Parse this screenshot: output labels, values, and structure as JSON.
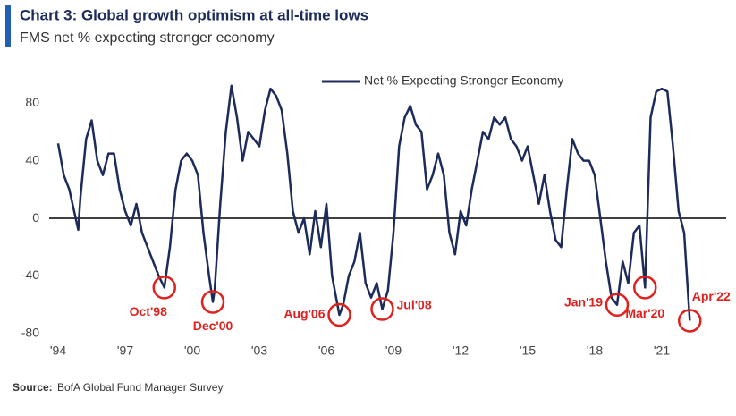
{
  "chart_data": {
    "type": "line",
    "title": "Chart 3: Global growth optimism at all-time lows",
    "subtitle": "FMS net % expecting stronger economy",
    "source_label": "Source:",
    "source": "BofA Global Fund Manager Survey",
    "x": [
      1994.0,
      1994.25,
      1994.5,
      1994.9,
      1995.0,
      1995.25,
      1995.5,
      1995.75,
      1996.0,
      1996.25,
      1996.5,
      1996.75,
      1997.0,
      1997.25,
      1997.5,
      1997.75,
      1998.0,
      1998.5,
      1998.75,
      1999.0,
      1999.25,
      1999.5,
      1999.75,
      2000.0,
      2000.25,
      2000.5,
      2000.75,
      2000.92,
      2001.0,
      2001.25,
      2001.5,
      2001.75,
      2002.0,
      2002.25,
      2002.5,
      2002.75,
      2003.0,
      2003.25,
      2003.5,
      2003.75,
      2004.0,
      2004.25,
      2004.5,
      2004.75,
      2005.0,
      2005.25,
      2005.5,
      2005.75,
      2006.0,
      2006.25,
      2006.58,
      2006.75,
      2007.0,
      2007.25,
      2007.5,
      2007.75,
      2008.0,
      2008.25,
      2008.5,
      2008.75,
      2009.0,
      2009.25,
      2009.5,
      2009.75,
      2010.0,
      2010.25,
      2010.5,
      2010.75,
      2011.0,
      2011.25,
      2011.5,
      2011.75,
      2012.0,
      2012.25,
      2012.5,
      2012.75,
      2013.0,
      2013.25,
      2013.5,
      2013.75,
      2014.0,
      2014.25,
      2014.5,
      2014.75,
      2015.0,
      2015.25,
      2015.5,
      2015.75,
      2016.0,
      2016.25,
      2016.5,
      2016.75,
      2017.0,
      2017.25,
      2017.5,
      2017.75,
      2018.0,
      2018.25,
      2018.5,
      2018.75,
      2019.0,
      2019.25,
      2019.5,
      2019.75,
      2020.0,
      2020.25,
      2020.5,
      2020.75,
      2021.0,
      2021.25,
      2021.5,
      2021.75,
      2022.0,
      2022.25
    ],
    "series": [
      {
        "name": "Net % Expecting Stronger Economy",
        "color": "#1c2b5a",
        "values": [
          52,
          30,
          20,
          -8,
          15,
          55,
          68,
          40,
          30,
          45,
          45,
          20,
          5,
          -5,
          10,
          -10,
          -20,
          -40,
          -48,
          -20,
          20,
          40,
          45,
          40,
          30,
          -10,
          -40,
          -58,
          -50,
          10,
          60,
          92,
          70,
          40,
          60,
          55,
          50,
          75,
          90,
          85,
          75,
          45,
          5,
          -10,
          0,
          -25,
          5,
          -20,
          10,
          -40,
          -67,
          -60,
          -40,
          -30,
          -10,
          -45,
          -55,
          -45,
          -63,
          -50,
          -10,
          50,
          70,
          78,
          65,
          60,
          20,
          30,
          45,
          30,
          -10,
          -25,
          5,
          -5,
          20,
          40,
          60,
          55,
          70,
          65,
          70,
          55,
          50,
          40,
          50,
          30,
          10,
          30,
          5,
          -15,
          -20,
          20,
          55,
          45,
          40,
          40,
          30,
          0,
          -30,
          -55,
          -60,
          -30,
          -45,
          -10,
          -5,
          -48,
          70,
          88,
          90,
          88,
          50,
          5,
          -10,
          -71
        ]
      }
    ],
    "annotations": [
      {
        "label": "Oct'98",
        "x": 1998.75,
        "y": -48
      },
      {
        "label": "Dec'00",
        "x": 2000.92,
        "y": -58
      },
      {
        "label": "Aug'06",
        "x": 2006.58,
        "y": -67
      },
      {
        "label": "Jul'08",
        "x": 2008.5,
        "y": -63
      },
      {
        "label": "Jan'19",
        "x": 2019.0,
        "y": -60
      },
      {
        "label": "Mar'20",
        "x": 2020.25,
        "y": -48
      },
      {
        "label": "Apr'22",
        "x": 2022.25,
        "y": -71
      }
    ],
    "xlim": [
      1994,
      2022.5
    ],
    "xticks": [
      {
        "value": 1994,
        "label": "'94"
      },
      {
        "value": 1997,
        "label": "'97"
      },
      {
        "value": 2000,
        "label": "'00"
      },
      {
        "value": 2003,
        "label": "'03"
      },
      {
        "value": 2006,
        "label": "'06"
      },
      {
        "value": 2009,
        "label": "'09"
      },
      {
        "value": 2012,
        "label": "'12"
      },
      {
        "value": 2015,
        "label": "'15"
      },
      {
        "value": 2018,
        "label": "'18"
      },
      {
        "value": 2021,
        "label": "'21"
      }
    ],
    "ylim": [
      -85,
      95
    ],
    "yticks": [
      -80,
      -40,
      0,
      40,
      80
    ],
    "grid": false,
    "annotation_color": "#e0201c"
  }
}
